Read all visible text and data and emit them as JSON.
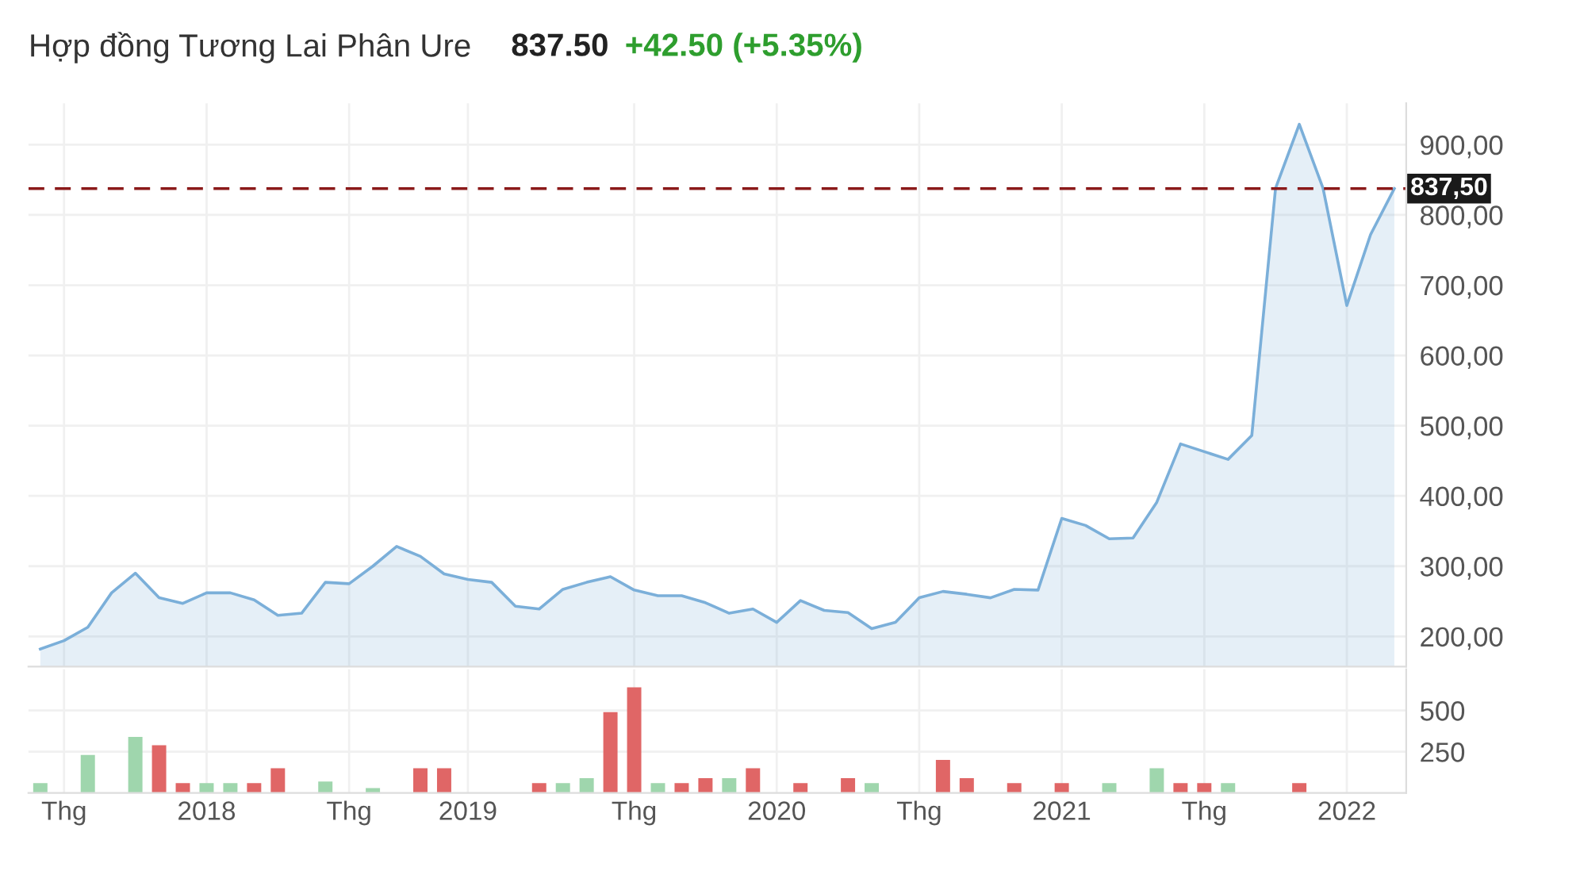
{
  "chart_data": [
    {
      "type": "area",
      "title": "Hợp đồng Tương Lai Phân Ure",
      "subtitle": "837.50",
      "annotations": [
        "+42.50 (+5.35%)"
      ],
      "categories": [
        null,
        null,
        null,
        null,
        null,
        null,
        null,
        null,
        null,
        null,
        null,
        null,
        null,
        null,
        null,
        null,
        null,
        null,
        null,
        null,
        null,
        null,
        null,
        null,
        null,
        null,
        null,
        null,
        null,
        null,
        null,
        null,
        null,
        null,
        null,
        null,
        null,
        null,
        null,
        null,
        null,
        null,
        null,
        null,
        null,
        null,
        null,
        null,
        null,
        null,
        null,
        null,
        null,
        null,
        null,
        null,
        null,
        null
      ],
      "series": [
        {
          "color": "#7bafd9",
          "values": [
            182,
            194,
            213,
            262,
            290,
            255,
            247,
            262,
            262,
            252,
            230,
            233,
            277,
            275,
            300,
            328,
            314,
            289,
            281,
            277,
            243,
            239,
            267,
            277,
            285,
            266,
            258,
            258,
            248,
            233,
            239,
            220,
            251,
            237,
            234,
            211,
            220,
            255,
            264,
            260,
            255,
            267,
            266,
            368,
            358,
            339,
            340,
            391,
            474,
            463,
            452,
            486,
            838,
            929,
            838,
            671,
            772,
            837.5
          ]
        }
      ],
      "ylim": [
        157,
        959
      ],
      "yticks": [
        {
          "value": 200,
          "label": "200,00"
        },
        {
          "value": 300,
          "label": "300,00"
        },
        {
          "value": 400,
          "label": "400,00"
        },
        {
          "value": 500,
          "label": "500,00"
        },
        {
          "value": 600,
          "label": "600,00"
        },
        {
          "value": 700,
          "label": "700,00"
        },
        {
          "value": 800,
          "label": "800,00"
        },
        {
          "value": 900,
          "label": "900,00"
        }
      ],
      "ref_lines": [
        {
          "axis": "y",
          "value": 837.5,
          "label": "837,50",
          "color": "#8b1a1a",
          "line_style": "dashed"
        }
      ],
      "grid": true,
      "tick_labels": "y"
    },
    {
      "type": "bar",
      "categories": [
        null,
        "Thg",
        null,
        null,
        null,
        null,
        null,
        "2018",
        null,
        null,
        null,
        null,
        null,
        "Thg",
        null,
        null,
        null,
        null,
        "2019",
        null,
        null,
        null,
        null,
        null,
        null,
        "Thg",
        null,
        null,
        null,
        null,
        null,
        "2020",
        null,
        null,
        null,
        null,
        null,
        "Thg",
        null,
        null,
        null,
        null,
        null,
        "2021",
        null,
        null,
        null,
        null,
        null,
        "Thg",
        null,
        null,
        null,
        null,
        null,
        "2022",
        null,
        null
      ],
      "values": [
        60,
        null,
        230,
        null,
        340,
        290,
        60,
        60,
        60,
        60,
        150,
        null,
        70,
        null,
        30,
        null,
        150,
        150,
        null,
        null,
        null,
        60,
        60,
        90,
        490,
        640,
        60,
        60,
        90,
        90,
        150,
        null,
        60,
        null,
        90,
        60,
        null,
        null,
        200,
        90,
        null,
        60,
        null,
        60,
        null,
        60,
        null,
        150,
        60,
        60,
        60,
        null,
        null,
        60,
        null,
        null,
        null,
        null
      ],
      "colors": [
        "#9fd6ad",
        "#e06666",
        "#9fd6ad",
        "#e06666",
        "#9fd6ad",
        "#e06666",
        "#e06666",
        "#9fd6ad",
        "#9fd6ad",
        "#e06666",
        "#e06666",
        "#e06666",
        "#9fd6ad",
        "#e06666",
        "#9fd6ad",
        "#e06666",
        "#e06666",
        "#e06666",
        "#e06666",
        "#e06666",
        "#e06666",
        "#e06666",
        "#9fd6ad",
        "#9fd6ad",
        "#e06666",
        "#e06666",
        "#9fd6ad",
        "#e06666",
        "#e06666",
        "#9fd6ad",
        "#e06666",
        "#e06666",
        "#e06666",
        "#e06666",
        "#e06666",
        "#9fd6ad",
        "#e06666",
        "#e06666",
        "#e06666",
        "#e06666",
        "#e06666",
        "#e06666",
        "#e06666",
        "#e06666",
        "#e06666",
        "#9fd6ad",
        "#e06666",
        "#9fd6ad",
        "#e06666",
        "#e06666",
        "#9fd6ad",
        "#e06666",
        "#e06666",
        "#e06666",
        "#e06666",
        "#9fd6ad",
        "#e06666",
        "#e06666"
      ],
      "ylim": [
        0,
        750
      ],
      "yticks": [
        250,
        500
      ],
      "grid": true
    }
  ]
}
